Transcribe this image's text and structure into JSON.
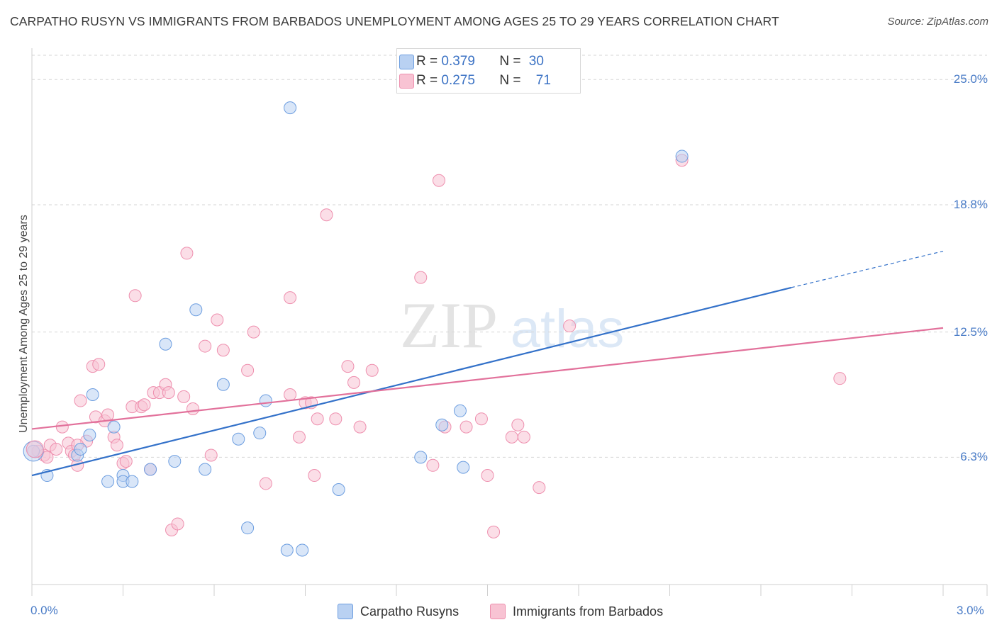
{
  "title": "CARPATHO RUSYN VS IMMIGRANTS FROM BARBADOS UNEMPLOYMENT AMONG AGES 25 TO 29 YEARS CORRELATION CHART",
  "source": "Source: ZipAtlas.com",
  "watermark": {
    "zip": "ZIP",
    "atlas": "atlas"
  },
  "legend_top": {
    "rows": [
      {
        "r_label": "R = ",
        "r_value": "0.379",
        "n_label": "N = ",
        "n_value": "30"
      },
      {
        "r_label": "R = ",
        "r_value": "0.275",
        "n_label": "N = ",
        "n_value": "71"
      }
    ]
  },
  "legend_bottom": {
    "series1": "Carpatho Rusyns",
    "series2": "Immigrants from Barbados"
  },
  "colors": {
    "series1_fill": "#b9d1f2",
    "series1_stroke": "#6d9ee0",
    "series1_line": "#3371c9",
    "series2_fill": "#f8c3d3",
    "series2_stroke": "#ee8fae",
    "series2_line": "#e2719b",
    "tick_text": "#4a7cc7",
    "grid": "#d6d6d6"
  },
  "chart_data": {
    "type": "scatter",
    "title": "CARPATHO RUSYN VS IMMIGRANTS FROM BARBADOS UNEMPLOYMENT AMONG AGES 25 TO 29 YEARS CORRELATION CHART",
    "xlabel": "",
    "ylabel": "Unemployment Among Ages 25 to 29 years",
    "xlim": [
      0,
      3.0
    ],
    "ylim": [
      0,
      26.2
    ],
    "x_ticks": [
      "0.0%",
      "3.0%"
    ],
    "y_ticks": [
      {
        "value": 25.0,
        "label": "25.0%"
      },
      {
        "value": 18.8,
        "label": "18.8%"
      },
      {
        "value": 12.5,
        "label": "12.5%"
      },
      {
        "value": 6.3,
        "label": "6.3%"
      }
    ],
    "grid": true,
    "legend_position": "top-center",
    "series": [
      {
        "name": "Carpatho Rusyns",
        "r": 0.379,
        "n": 30,
        "trend": {
          "x0": 0.0,
          "y0": 5.4,
          "x1": 2.5,
          "y1": 14.7,
          "x_dash_end": 3.0,
          "y_dash_end": 16.5
        },
        "points": [
          [
            0.005,
            6.6
          ],
          [
            0.05,
            5.4
          ],
          [
            0.15,
            6.4
          ],
          [
            0.2,
            9.4
          ],
          [
            0.25,
            5.1
          ],
          [
            0.16,
            6.7
          ],
          [
            0.3,
            5.4
          ],
          [
            0.3,
            5.1
          ],
          [
            0.33,
            5.1
          ],
          [
            0.39,
            5.7
          ],
          [
            0.44,
            11.9
          ],
          [
            0.47,
            6.1
          ],
          [
            0.54,
            13.6
          ],
          [
            0.57,
            5.7
          ],
          [
            0.63,
            9.9
          ],
          [
            0.68,
            7.2
          ],
          [
            0.71,
            2.8
          ],
          [
            0.75,
            7.5
          ],
          [
            0.77,
            9.1
          ],
          [
            0.85,
            23.6
          ],
          [
            0.89,
            1.7
          ],
          [
            1.01,
            4.7
          ],
          [
            1.28,
            6.3
          ],
          [
            1.35,
            7.9
          ],
          [
            1.41,
            8.6
          ],
          [
            1.42,
            5.8
          ],
          [
            2.14,
            21.2
          ],
          [
            0.19,
            7.4
          ],
          [
            0.27,
            7.8
          ],
          [
            0.84,
            1.7
          ]
        ]
      },
      {
        "name": "Immigrants from Barbados",
        "r": 0.275,
        "n": 71,
        "trend": {
          "x0": 0.0,
          "y0": 7.7,
          "x1": 3.0,
          "y1": 12.7
        },
        "points": [
          [
            0.02,
            6.6
          ],
          [
            0.04,
            6.4
          ],
          [
            0.06,
            6.9
          ],
          [
            0.08,
            6.7
          ],
          [
            0.1,
            7.8
          ],
          [
            0.12,
            7.0
          ],
          [
            0.13,
            6.6
          ],
          [
            0.14,
            6.4
          ],
          [
            0.15,
            5.9
          ],
          [
            0.16,
            9.1
          ],
          [
            0.18,
            7.1
          ],
          [
            0.2,
            10.8
          ],
          [
            0.21,
            8.3
          ],
          [
            0.22,
            10.9
          ],
          [
            0.24,
            8.1
          ],
          [
            0.25,
            8.4
          ],
          [
            0.27,
            7.3
          ],
          [
            0.28,
            6.9
          ],
          [
            0.3,
            6.0
          ],
          [
            0.31,
            6.1
          ],
          [
            0.33,
            8.8
          ],
          [
            0.34,
            14.3
          ],
          [
            0.36,
            8.8
          ],
          [
            0.37,
            8.9
          ],
          [
            0.39,
            5.7
          ],
          [
            0.4,
            9.5
          ],
          [
            0.42,
            9.5
          ],
          [
            0.44,
            9.9
          ],
          [
            0.46,
            2.7
          ],
          [
            0.48,
            3.0
          ],
          [
            0.5,
            9.3
          ],
          [
            0.51,
            16.4
          ],
          [
            0.53,
            8.7
          ],
          [
            0.57,
            11.8
          ],
          [
            0.59,
            6.4
          ],
          [
            0.61,
            13.1
          ],
          [
            0.63,
            11.6
          ],
          [
            0.71,
            10.6
          ],
          [
            0.73,
            12.5
          ],
          [
            0.77,
            5.0
          ],
          [
            0.85,
            14.2
          ],
          [
            0.85,
            9.4
          ],
          [
            0.88,
            7.3
          ],
          [
            0.9,
            9.0
          ],
          [
            0.92,
            9.0
          ],
          [
            0.93,
            5.4
          ],
          [
            0.94,
            8.2
          ],
          [
            0.97,
            18.3
          ],
          [
            1.0,
            8.2
          ],
          [
            1.04,
            10.8
          ],
          [
            1.06,
            10.0
          ],
          [
            1.08,
            7.8
          ],
          [
            1.12,
            10.6
          ],
          [
            1.28,
            15.2
          ],
          [
            1.32,
            5.9
          ],
          [
            1.34,
            20.0
          ],
          [
            1.36,
            7.8
          ],
          [
            1.43,
            7.8
          ],
          [
            1.48,
            8.2
          ],
          [
            1.5,
            5.4
          ],
          [
            1.52,
            2.6
          ],
          [
            1.58,
            7.3
          ],
          [
            1.6,
            7.9
          ],
          [
            1.62,
            7.3
          ],
          [
            1.67,
            4.8
          ],
          [
            1.77,
            12.8
          ],
          [
            2.14,
            21.0
          ],
          [
            2.66,
            10.2
          ],
          [
            0.05,
            6.3
          ],
          [
            0.15,
            6.9
          ],
          [
            0.45,
            9.5
          ]
        ]
      }
    ]
  }
}
